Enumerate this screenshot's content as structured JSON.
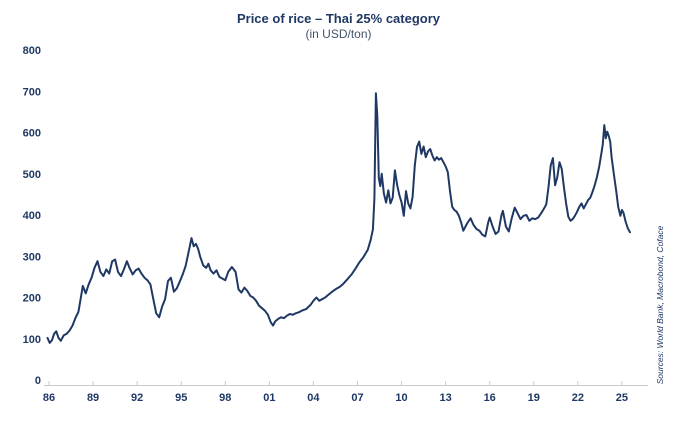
{
  "header": {
    "title": "Price of rice – Thai 25% category",
    "subtitle": "(in USD/ton)"
  },
  "source_note": "Sources: World Bank, Macrobond, Coface",
  "colors": {
    "line": "#1f3864",
    "axis_text": "#1f3864",
    "axis_line": "#c9c9c9",
    "title": "#1f3864",
    "subtitle": "#44546a",
    "background": "#ffffff"
  },
  "chart_data": {
    "type": "line",
    "title": "Price of rice – Thai 25% category",
    "subtitle": "(in USD/ton)",
    "ylabel": "USD/ton",
    "ylim": [
      0,
      800
    ],
    "yticks": [
      0,
      100,
      200,
      300,
      400,
      500,
      600,
      700,
      800
    ],
    "xtick_years": [
      1986,
      1989,
      1992,
      1995,
      1998,
      2001,
      2004,
      2007,
      2010,
      2013,
      2016,
      2019,
      2022,
      2025
    ],
    "xtick_labels": [
      "86",
      "89",
      "92",
      "95",
      "98",
      "01",
      "04",
      "07",
      "10",
      "13",
      "16",
      "19",
      "22",
      "25"
    ],
    "grid": false,
    "legend": "none",
    "series": [
      {
        "name": "Thai 25% rice price (USD/ton)",
        "x": [
          1985.9,
          1986.05,
          1986.2,
          1986.35,
          1986.5,
          1986.65,
          1986.8,
          1987.0,
          1987.2,
          1987.4,
          1987.6,
          1987.8,
          1988.0,
          1988.15,
          1988.3,
          1988.5,
          1988.7,
          1988.9,
          1989.1,
          1989.3,
          1989.5,
          1989.7,
          1989.9,
          1990.1,
          1990.3,
          1990.5,
          1990.7,
          1990.9,
          1991.1,
          1991.3,
          1991.5,
          1991.7,
          1991.9,
          1992.1,
          1992.3,
          1992.5,
          1992.7,
          1992.9,
          1993.1,
          1993.3,
          1993.5,
          1993.7,
          1993.9,
          1994.1,
          1994.3,
          1994.5,
          1994.7,
          1994.9,
          1995.1,
          1995.3,
          1995.5,
          1995.7,
          1995.85,
          1996.0,
          1996.15,
          1996.3,
          1996.5,
          1996.7,
          1996.85,
          1997.0,
          1997.2,
          1997.4,
          1997.6,
          1997.8,
          1998.0,
          1998.2,
          1998.45,
          1998.7,
          1998.9,
          1999.1,
          1999.3,
          1999.5,
          1999.7,
          1999.9,
          2000.1,
          2000.3,
          2000.5,
          2000.7,
          2000.9,
          2001.1,
          2001.25,
          2001.4,
          2001.6,
          2001.8,
          2002.0,
          2002.2,
          2002.4,
          2002.6,
          2002.8,
          2003.0,
          2003.2,
          2003.5,
          2003.8,
          2004.0,
          2004.2,
          2004.4,
          2004.6,
          2004.8,
          2005.0,
          2005.2,
          2005.5,
          2005.8,
          2006.0,
          2006.3,
          2006.6,
          2006.9,
          2007.1,
          2007.4,
          2007.7,
          2007.9,
          2008.05,
          2008.15,
          2008.25,
          2008.35,
          2008.45,
          2008.55,
          2008.65,
          2008.8,
          2008.95,
          2009.1,
          2009.25,
          2009.4,
          2009.55,
          2009.7,
          2009.85,
          2010.0,
          2010.15,
          2010.3,
          2010.45,
          2010.6,
          2010.75,
          2010.9,
          2011.05,
          2011.2,
          2011.35,
          2011.5,
          2011.65,
          2011.8,
          2011.95,
          2012.1,
          2012.25,
          2012.4,
          2012.55,
          2012.7,
          2012.85,
          2013.0,
          2013.15,
          2013.3,
          2013.45,
          2013.6,
          2013.75,
          2013.9,
          2014.05,
          2014.2,
          2014.35,
          2014.5,
          2014.7,
          2014.9,
          2015.1,
          2015.3,
          2015.5,
          2015.7,
          2015.9,
          2016.0,
          2016.2,
          2016.4,
          2016.6,
          2016.8,
          2016.9,
          2017.1,
          2017.3,
          2017.5,
          2017.7,
          2017.9,
          2018.1,
          2018.3,
          2018.5,
          2018.7,
          2018.9,
          2019.1,
          2019.3,
          2019.5,
          2019.7,
          2019.85,
          2020.0,
          2020.15,
          2020.3,
          2020.45,
          2020.6,
          2020.75,
          2020.9,
          2021.05,
          2021.2,
          2021.35,
          2021.5,
          2021.65,
          2021.8,
          2021.95,
          2022.1,
          2022.25,
          2022.4,
          2022.55,
          2022.7,
          2022.85,
          2023.0,
          2023.15,
          2023.3,
          2023.45,
          2023.6,
          2023.7,
          2023.8,
          2023.9,
          2024.0,
          2024.1,
          2024.2,
          2024.3,
          2024.45,
          2024.6,
          2024.75,
          2024.9,
          2025.0,
          2025.1,
          2025.25,
          2025.4,
          2025.55
        ],
        "y": [
          102,
          90,
          96,
          112,
          118,
          102,
          95,
          108,
          112,
          120,
          132,
          150,
          165,
          196,
          228,
          210,
          232,
          248,
          272,
          288,
          262,
          252,
          268,
          258,
          288,
          292,
          262,
          252,
          268,
          288,
          270,
          256,
          266,
          270,
          258,
          248,
          242,
          232,
          196,
          162,
          152,
          178,
          196,
          240,
          248,
          214,
          222,
          238,
          256,
          276,
          310,
          344,
          324,
          330,
          318,
          298,
          278,
          272,
          282,
          266,
          258,
          266,
          250,
          246,
          242,
          262,
          274,
          262,
          220,
          212,
          224,
          216,
          204,
          200,
          192,
          180,
          174,
          168,
          158,
          140,
          132,
          142,
          148,
          152,
          150,
          156,
          160,
          158,
          162,
          164,
          168,
          172,
          182,
          192,
          200,
          192,
          196,
          200,
          206,
          212,
          220,
          226,
          232,
          244,
          256,
          272,
          284,
          298,
          316,
          340,
          365,
          440,
          695,
          640,
          490,
          470,
          500,
          452,
          430,
          460,
          428,
          442,
          508,
          472,
          448,
          430,
          398,
          458,
          428,
          416,
          444,
          520,
          565,
          578,
          548,
          566,
          540,
          554,
          560,
          544,
          532,
          540,
          534,
          538,
          528,
          518,
          504,
          458,
          420,
          412,
          408,
          398,
          382,
          362,
          372,
          382,
          392,
          376,
          366,
          362,
          352,
          348,
          382,
          394,
          372,
          354,
          360,
          400,
          410,
          372,
          360,
          392,
          418,
          404,
          390,
          398,
          400,
          386,
          392,
          390,
          394,
          404,
          416,
          426,
          468,
          520,
          538,
          472,
          492,
          528,
          512,
          468,
          428,
          396,
          386,
          390,
          398,
          408,
          420,
          428,
          416,
          426,
          436,
          442,
          456,
          472,
          492,
          516,
          548,
          572,
          618,
          586,
          602,
          592,
          578,
          540,
          500,
          462,
          420,
          398,
          412,
          406,
          384,
          368,
          358
        ]
      }
    ]
  }
}
